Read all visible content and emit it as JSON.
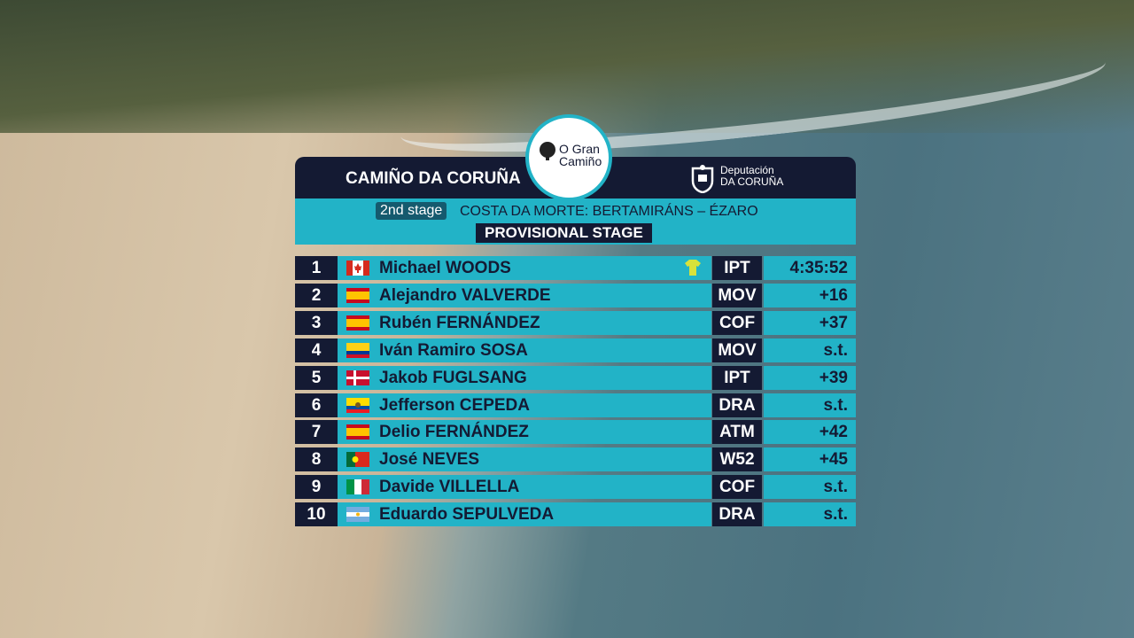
{
  "header": {
    "title": "CAMIÑO DA CORUÑA",
    "logo_line1": "O Gran",
    "logo_line2": "Camiño",
    "sponsor_line1": "Deputación",
    "sponsor_line2": "DA CORUÑA"
  },
  "stage": {
    "label": "2nd stage",
    "route": "COSTA DA MORTE: BERTAMIRÁNS – ÉZARO",
    "status": "PROVISIONAL STAGE"
  },
  "table": {
    "rows": [
      [
        1,
        "Michael WOODS",
        "IPT",
        "4:35:52"
      ],
      [
        2,
        "Alejandro VALVERDE",
        "MOV",
        "+16"
      ],
      [
        3,
        "Rubén FERNÁNDEZ",
        "COF",
        "+37"
      ],
      [
        4,
        "Iván Ramiro SOSA",
        "MOV",
        "s.t."
      ],
      [
        5,
        "Jakob FUGLSANG",
        "IPT",
        "+39"
      ],
      [
        6,
        "Jefferson CEPEDA",
        "DRA",
        "s.t."
      ],
      [
        7,
        "Delio FERNÁNDEZ",
        "ATM",
        "+42"
      ],
      [
        8,
        "José NEVES",
        "W52",
        "+45"
      ],
      [
        9,
        "Davide VILLELLA",
        "COF",
        "s.t."
      ],
      [
        10,
        "Eduardo SEPULVEDA",
        "DRA",
        "s.t."
      ]
    ]
  }
}
